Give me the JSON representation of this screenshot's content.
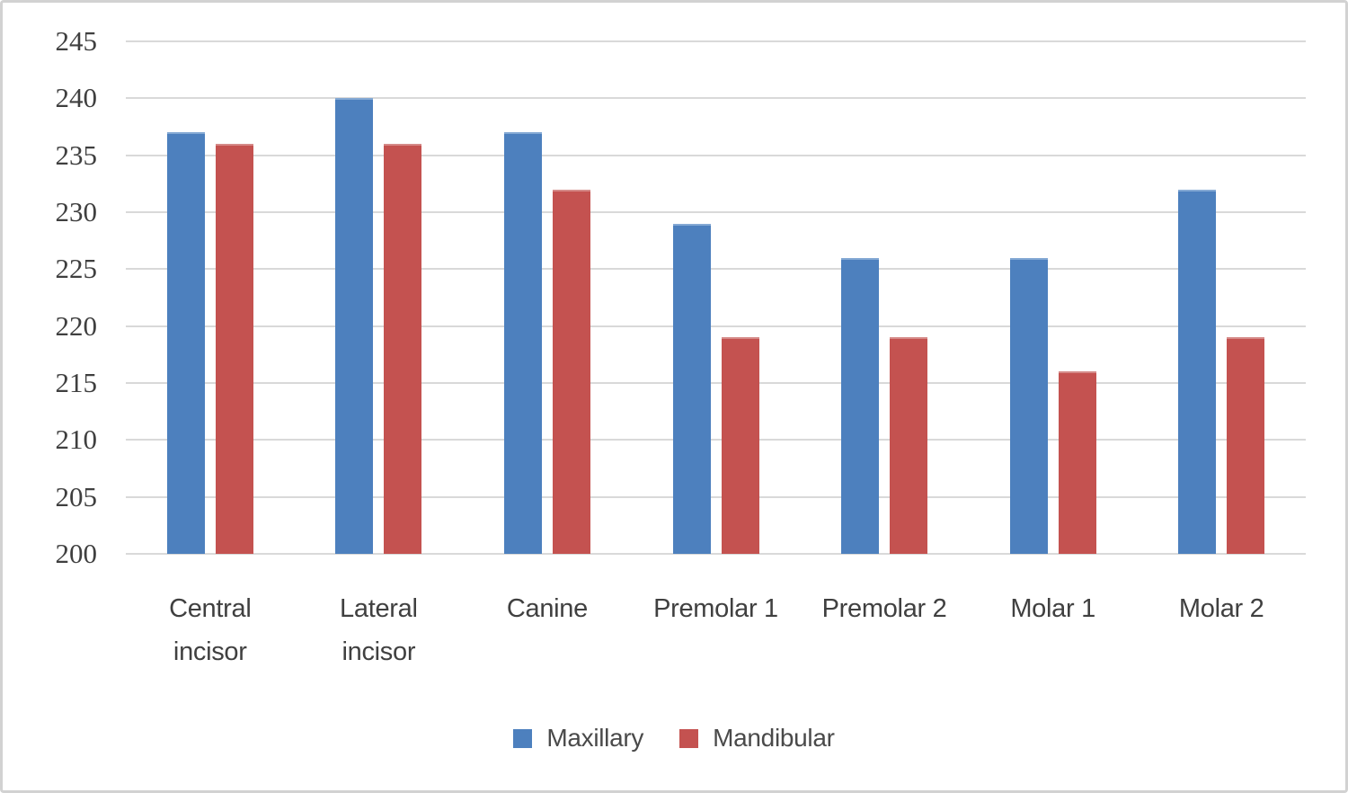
{
  "chart_data": {
    "type": "bar",
    "title": "",
    "xlabel": "",
    "ylabel": "",
    "categories": [
      "Central incisor",
      "Lateral incisor",
      "Canine",
      "Premolar 1",
      "Premolar 2",
      "Molar 1",
      "Molar 2"
    ],
    "series": [
      {
        "name": "Maxillary",
        "color": "#4d80be",
        "values": [
          237,
          240,
          237,
          229,
          226,
          226,
          232
        ]
      },
      {
        "name": "Mandibular",
        "color": "#c45250",
        "values": [
          236,
          236,
          232,
          219,
          219,
          216,
          219
        ]
      }
    ],
    "ylim": [
      200,
      245
    ],
    "ytick_step": 5,
    "ytick_labels": [
      "200",
      "205",
      "210",
      "215",
      "220",
      "225",
      "230",
      "235",
      "240",
      "245"
    ],
    "grid": true,
    "legend_position": "bottom",
    "legend_entries": [
      "Maxillary",
      "Mandibular"
    ]
  },
  "colors": {
    "maxillary": "#4d80be",
    "mandibular": "#c45250",
    "gridline": "#d9d9d9",
    "tick_text": "#3f3f3f",
    "category_text": "#404040",
    "frame_border": "#d2d2d2",
    "background": "#ffffff"
  }
}
